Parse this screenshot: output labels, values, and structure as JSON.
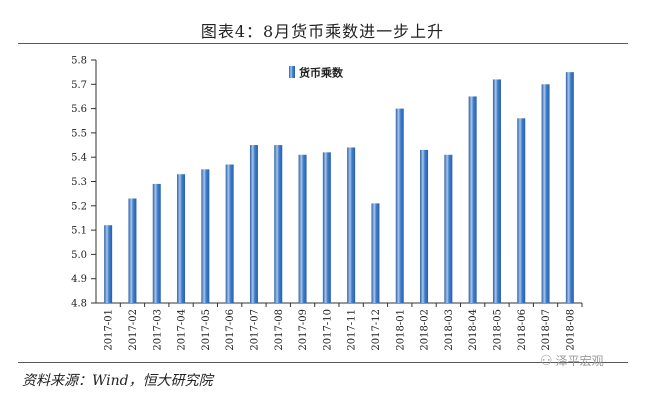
{
  "title": "图表4：8月货币乘数进一步上升",
  "source": "资料来源：Wind，恒大研究院",
  "watermark": {
    "text": "泽平宏观",
    "icon": "wechat-watermark-icon"
  },
  "chart_data": {
    "type": "bar",
    "title": "",
    "xlabel": "",
    "ylabel": "",
    "legend": {
      "position": "top-center"
    },
    "grid": false,
    "colors": {
      "bar_light": "#a8c6ea",
      "bar_mid": "#3f7fcf",
      "bar_dark": "#2a5fa6"
    },
    "ylim": [
      4.8,
      5.8
    ],
    "yticks": [
      4.8,
      4.9,
      5.0,
      5.1,
      5.2,
      5.3,
      5.4,
      5.5,
      5.6,
      5.7,
      5.8
    ],
    "ytick_labels": [
      "4.8",
      "4.9",
      "5.0",
      "5.1",
      "5.2",
      "5.3",
      "5.4",
      "5.5",
      "5.6",
      "5.7",
      "5.8"
    ],
    "categories": [
      "2017-01",
      "2017-02",
      "2017-03",
      "2017-04",
      "2017-05",
      "2017-06",
      "2017-07",
      "2017-08",
      "2017-09",
      "2017-10",
      "2017-11",
      "2017-12",
      "2018-01",
      "2018-02",
      "2018-03",
      "2018-04",
      "2018-05",
      "2018-06",
      "2018-07",
      "2018-08"
    ],
    "series": [
      {
        "name": "货币乘数",
        "values": [
          5.12,
          5.23,
          5.29,
          5.33,
          5.35,
          5.37,
          5.45,
          5.45,
          5.41,
          5.42,
          5.44,
          5.21,
          5.6,
          5.43,
          5.41,
          5.65,
          5.72,
          5.56,
          5.7,
          5.75
        ]
      }
    ]
  }
}
